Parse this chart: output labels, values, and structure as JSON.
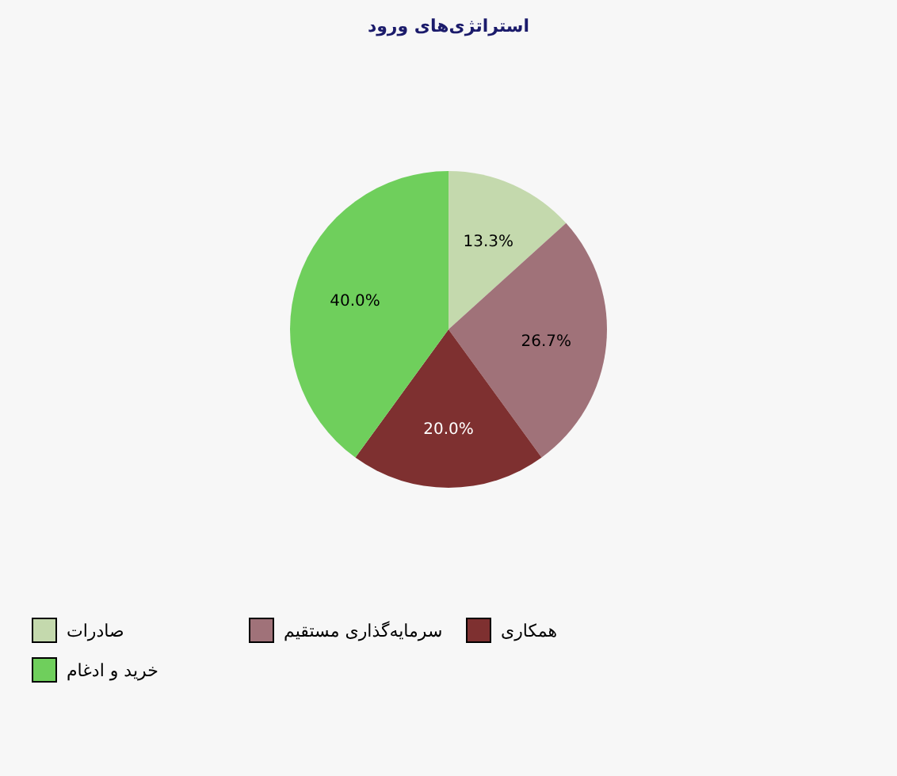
{
  "chart_data": {
    "type": "pie",
    "title": "استراتژی‌های ورود",
    "categories": [
      "صادرات",
      "سرمایه‌گذاری مستقیم",
      "همکاری",
      "خرید و ادغام"
    ],
    "values": [
      13.3,
      26.7,
      20.0,
      40.0
    ],
    "colors": [
      "#c4d9ad",
      "#a07279",
      "#7e3030",
      "#6fcf5c"
    ],
    "value_labels": [
      "13.3%",
      "26.7%",
      "20.0%",
      "40.0%"
    ],
    "legend": "bottom"
  }
}
